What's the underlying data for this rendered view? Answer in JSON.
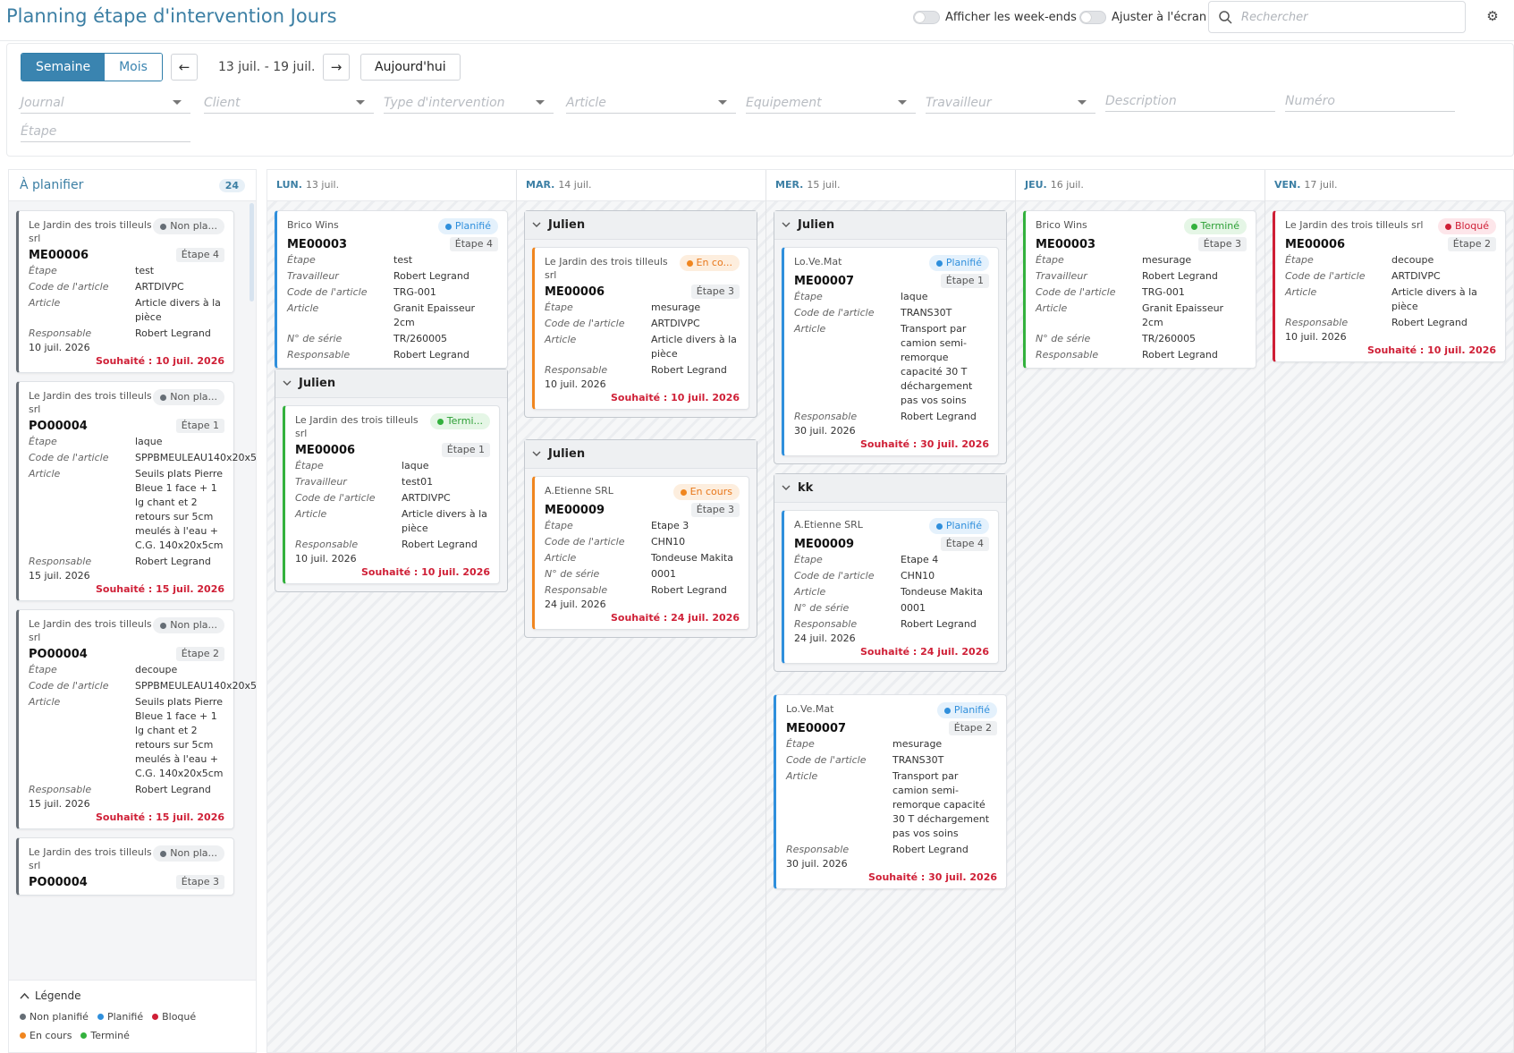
{
  "header": {
    "title": "Planning étape d'intervention Jours",
    "toggle_weekends": "Afficher les week-ends",
    "toggle_fit": "Ajuster à l'écran",
    "search_placeholder": "Rechercher"
  },
  "toolbar": {
    "week": "Semaine",
    "month": "Mois",
    "prev": "←",
    "next": "→",
    "range": "13 juil. - 19 juil.",
    "today": "Aujourd'hui"
  },
  "filters": [
    "Journal",
    "Client",
    "Type d'intervention",
    "Article",
    "Equipement",
    "Travailleur",
    "Description",
    "Numéro",
    "Étape"
  ],
  "colors": {
    "non_planifie": "#666e76",
    "planifie": "#2f8fdc",
    "bloque": "#cf1f36",
    "en_cours": "#f0861f",
    "termine": "#33b13d",
    "accent": "#3c7fa4",
    "due": "#cf1f36"
  },
  "unplanned": {
    "title": "À planifier",
    "count": "24",
    "cards": [
      {
        "client": "Le Jardin des trois tilleuls srl",
        "status": "Non pla...",
        "number": "ME00006",
        "etape": "Étape 4",
        "fields": [
          [
            "Étape",
            "test"
          ],
          [
            "Code de l'article",
            "ARTDIVPC"
          ],
          [
            "Article",
            "Article divers à la pièce"
          ],
          [
            "Responsable",
            "Robert Legrand"
          ]
        ],
        "date": "10 juil. 2026",
        "due": "Souhaité : 10 juil. 2026"
      },
      {
        "client": "Le Jardin des trois tilleuls srl",
        "status": "Non pla...",
        "number": "PO00004",
        "etape": "Étape 1",
        "fields": [
          [
            "Étape",
            "laque"
          ],
          [
            "Code de l'article",
            "SPPBMEULEAU140x20x5"
          ],
          [
            "Article",
            "Seuils plats Pierre Bleue 1 face + 1 lg chant et 2 retours sur 5cm meulés à l'eau + C.G. 140x20x5cm"
          ],
          [
            "Responsable",
            "Robert Legrand"
          ]
        ],
        "date": "15 juil. 2026",
        "due": "Souhaité : 15 juil. 2026"
      },
      {
        "client": "Le Jardin des trois tilleuls srl",
        "status": "Non pla...",
        "number": "PO00004",
        "etape": "Étape 2",
        "fields": [
          [
            "Étape",
            "decoupe"
          ],
          [
            "Code de l'article",
            "SPPBMEULEAU140x20x5"
          ],
          [
            "Article",
            "Seuils plats Pierre Bleue 1 face + 1 lg chant et 2 retours sur 5cm meulés à l'eau + C.G. 140x20x5cm"
          ],
          [
            "Responsable",
            "Robert Legrand"
          ]
        ],
        "date": "15 juil. 2026",
        "due": "Souhaité : 15 juil. 2026"
      },
      {
        "client": "Le Jardin des trois tilleuls srl",
        "status": "Non pla...",
        "number": "PO00004",
        "etape": "Étape 3",
        "fields": [],
        "date": "",
        "due": ""
      }
    ]
  },
  "legend": {
    "title": "Légende",
    "items": [
      "Non planifié",
      "Planifié",
      "Bloqué",
      "En cours",
      "Terminé"
    ]
  },
  "days": [
    {
      "name": "LUN.",
      "date": "13 juil."
    },
    {
      "name": "MAR.",
      "date": "14 juil."
    },
    {
      "name": "MER.",
      "date": "15 juil."
    },
    {
      "name": "JEU.",
      "date": "16 juil."
    },
    {
      "name": "VEN.",
      "date": "17 juil."
    }
  ],
  "groups": {
    "lun": "Julien",
    "mar1": "Julien",
    "mar2": "Julien",
    "mer1": "Julien",
    "mer2": "kk"
  },
  "cards": {
    "lun_a": {
      "client": "Brico Wins",
      "status": "Planifié",
      "number": "ME00003",
      "etape": "Étape 4",
      "fields": [
        [
          "Étape",
          "test"
        ],
        [
          "Travailleur",
          "Robert Legrand"
        ],
        [
          "Code de l'article",
          "TRG-001"
        ],
        [
          "Article",
          "Granit Epaisseur 2cm"
        ],
        [
          "N° de série",
          "TR/260005"
        ],
        [
          "Responsable",
          "Robert Legrand"
        ]
      ]
    },
    "lun_b": {
      "client": "Le Jardin des trois tilleuls srl",
      "status": "Termi...",
      "number": "ME00006",
      "etape": "Étape 1",
      "fields": [
        [
          "Étape",
          "laque"
        ],
        [
          "Travailleur",
          "test01"
        ],
        [
          "Code de l'article",
          "ARTDIVPC"
        ],
        [
          "Article",
          "Article divers à la pièce"
        ],
        [
          "Responsable",
          "Robert Legrand"
        ]
      ],
      "date": "10 juil. 2026",
      "due": "Souhaité : 10 juil. 2026"
    },
    "mar_a": {
      "client": "Le Jardin des trois tilleuls srl",
      "status": "En co...",
      "number": "ME00006",
      "etape": "Étape 3",
      "fields": [
        [
          "Étape",
          "mesurage"
        ],
        [
          "Code de l'article",
          "ARTDIVPC"
        ],
        [
          "Article",
          "Article divers à la pièce"
        ],
        [
          "Responsable",
          "Robert Legrand"
        ]
      ],
      "date": "10 juil. 2026",
      "due": "Souhaité : 10 juil. 2026"
    },
    "mar_b": {
      "client": "A.Etienne SRL",
      "status": "En cours",
      "number": "ME00009",
      "etape": "Étape 3",
      "fields": [
        [
          "Étape",
          "Etape 3"
        ],
        [
          "Code de l'article",
          "CHN10"
        ],
        [
          "Article",
          "Tondeuse Makita"
        ],
        [
          "N° de série",
          "0001"
        ],
        [
          "Responsable",
          "Robert Legrand"
        ]
      ],
      "date": "24 juil. 2026",
      "due": "Souhaité : 24 juil. 2026"
    },
    "mer_a": {
      "client": "Lo.Ve.Mat",
      "status": "Planifié",
      "number": "ME00007",
      "etape": "Étape 1",
      "fields": [
        [
          "Étape",
          "laque"
        ],
        [
          "Code de l'article",
          "TRANS30T"
        ],
        [
          "Article",
          "Transport par camion semi-remorque capacité 30 T déchargement pas vos soins"
        ],
        [
          "Responsable",
          "Robert Legrand"
        ]
      ],
      "date": "30 juil. 2026",
      "due": "Souhaité : 30 juil. 2026"
    },
    "mer_b": {
      "client": "A.Etienne SRL",
      "status": "Planifié",
      "number": "ME00009",
      "etape": "Étape 4",
      "fields": [
        [
          "Étape",
          "Etape 4"
        ],
        [
          "Code de l'article",
          "CHN10"
        ],
        [
          "Article",
          "Tondeuse Makita"
        ],
        [
          "N° de série",
          "0001"
        ],
        [
          "Responsable",
          "Robert Legrand"
        ]
      ],
      "date": "24 juil. 2026",
      "due": "Souhaité : 24 juil. 2026"
    },
    "mer_c": {
      "client": "Lo.Ve.Mat",
      "status": "Planifié",
      "number": "ME00007",
      "etape": "Étape 2",
      "fields": [
        [
          "Étape",
          "mesurage"
        ],
        [
          "Code de l'article",
          "TRANS30T"
        ],
        [
          "Article",
          "Transport par camion semi-remorque capacité 30 T déchargement pas vos soins"
        ],
        [
          "Responsable",
          "Robert Legrand"
        ]
      ],
      "date": "30 juil. 2026",
      "due": "Souhaité : 30 juil. 2026"
    },
    "jeu_a": {
      "client": "Brico Wins",
      "status": "Terminé",
      "number": "ME00003",
      "etape": "Étape 3",
      "fields": [
        [
          "Étape",
          "mesurage"
        ],
        [
          "Travailleur",
          "Robert Legrand"
        ],
        [
          "Code de l'article",
          "TRG-001"
        ],
        [
          "Article",
          "Granit Epaisseur 2cm"
        ],
        [
          "N° de série",
          "TR/260005"
        ],
        [
          "Responsable",
          "Robert Legrand"
        ]
      ]
    },
    "ven_a": {
      "client": "Le Jardin des trois tilleuls srl",
      "status": "Bloqué",
      "number": "ME00006",
      "etape": "Étape 2",
      "fields": [
        [
          "Étape",
          "decoupe"
        ],
        [
          "Code de l'article",
          "ARTDIVPC"
        ],
        [
          "Article",
          "Article divers à la pièce"
        ],
        [
          "Responsable",
          "Robert Legrand"
        ]
      ],
      "date": "10 juil. 2026",
      "due": "Souhaité : 10 juil. 2026"
    }
  }
}
